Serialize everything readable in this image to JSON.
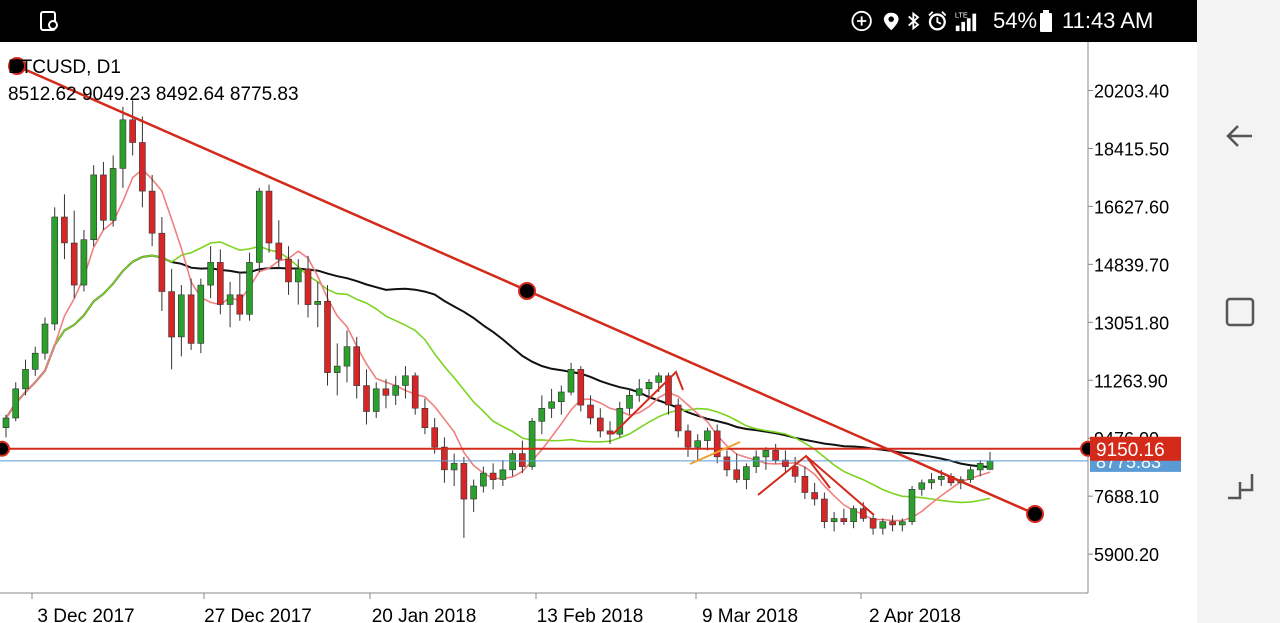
{
  "status_bar": {
    "battery": "54%",
    "time": "11:43 AM",
    "icons": [
      "screenshot-icon",
      "add-circle-icon",
      "location-icon",
      "bluetooth-icon",
      "alarm-icon",
      "lte-signal-icon",
      "battery-icon"
    ]
  },
  "nav": {
    "icons": [
      "back-icon",
      "home-icon",
      "recent-apps-icon"
    ]
  },
  "chart_data": {
    "type": "candlestick",
    "symbol_title": "BTCUSD, D1",
    "ohlc_header": "8512.62 9049.23 8492.64 8775.83",
    "y_ticks": [
      "20203.40",
      "18415.50",
      "16627.60",
      "14839.70",
      "13051.80",
      "11263.90",
      "9476.00",
      "7688.10",
      "5900.20"
    ],
    "x_ticks": [
      "3 Dec 2017",
      "27 Dec 2017",
      "20 Jan 2018",
      "13 Feb 2018",
      "9 Mar 2018",
      "2 Apr 2018"
    ],
    "price_label_line": "9150.16",
    "price_label_current": "8775.83",
    "ylim": [
      4700,
      21700
    ],
    "colors": {
      "bull": "#2ca02c",
      "bear": "#d62728",
      "wick": "#333333",
      "trendline": "#d42a1a",
      "hline": "#d42a1a",
      "current_line": "#5a9bd5",
      "ma_black": "#111111",
      "ma_green": "#7dd420",
      "ma_red": "#f08080"
    },
    "candles": [
      [
        9800,
        10200,
        9500,
        10100
      ],
      [
        10100,
        11200,
        10000,
        11000
      ],
      [
        11000,
        11900,
        10800,
        11600
      ],
      [
        11600,
        12300,
        11400,
        12100
      ],
      [
        12100,
        13200,
        11900,
        13000
      ],
      [
        13000,
        16600,
        12800,
        16300
      ],
      [
        16300,
        17000,
        15000,
        15500
      ],
      [
        15500,
        16500,
        13800,
        14200
      ],
      [
        14200,
        15900,
        14000,
        15600
      ],
      [
        15600,
        17900,
        15400,
        17600
      ],
      [
        17600,
        18000,
        15900,
        16200
      ],
      [
        16200,
        18200,
        16000,
        17800
      ],
      [
        17800,
        19700,
        17200,
        19300
      ],
      [
        19300,
        19900,
        18200,
        18600
      ],
      [
        18600,
        19400,
        16600,
        17100
      ],
      [
        17100,
        17600,
        15400,
        15800
      ],
      [
        15800,
        16300,
        13400,
        14000
      ],
      [
        14000,
        14700,
        11600,
        12600
      ],
      [
        12600,
        14200,
        12000,
        13900
      ],
      [
        13900,
        14400,
        12200,
        12400
      ],
      [
        12400,
        14400,
        12100,
        14200
      ],
      [
        14200,
        15400,
        13800,
        14900
      ],
      [
        14900,
        15300,
        13300,
        13600
      ],
      [
        13600,
        14300,
        12900,
        13900
      ],
      [
        13900,
        14600,
        13100,
        13300
      ],
      [
        13300,
        15200,
        13100,
        14900
      ],
      [
        14900,
        17200,
        14600,
        17100
      ],
      [
        17100,
        17300,
        15200,
        15500
      ],
      [
        15500,
        16200,
        14700,
        15000
      ],
      [
        15000,
        15400,
        13900,
        14300
      ],
      [
        14300,
        15000,
        13600,
        14700
      ],
      [
        14700,
        15100,
        13200,
        13600
      ],
      [
        13600,
        14300,
        12900,
        13700
      ],
      [
        13700,
        14200,
        11100,
        11500
      ],
      [
        11500,
        12400,
        10800,
        11700
      ],
      [
        11700,
        12800,
        11200,
        12300
      ],
      [
        12300,
        12600,
        10700,
        11100
      ],
      [
        11100,
        11600,
        9900,
        10300
      ],
      [
        10300,
        11200,
        10100,
        11000
      ],
      [
        11000,
        11300,
        10400,
        10800
      ],
      [
        10800,
        11400,
        10500,
        11100
      ],
      [
        11100,
        11700,
        10700,
        11400
      ],
      [
        11400,
        11500,
        10200,
        10400
      ],
      [
        10400,
        10700,
        9600,
        9800
      ],
      [
        9800,
        10100,
        9000,
        9200
      ],
      [
        9200,
        9500,
        8100,
        8500
      ],
      [
        8500,
        9000,
        8000,
        8700
      ],
      [
        8700,
        8900,
        6400,
        7600
      ],
      [
        7600,
        8200,
        7200,
        8000
      ],
      [
        8000,
        8600,
        7800,
        8400
      ],
      [
        8400,
        8700,
        7900,
        8200
      ],
      [
        8200,
        8800,
        8000,
        8500
      ],
      [
        8500,
        9100,
        8300,
        9000
      ],
      [
        9000,
        9400,
        8400,
        8600
      ],
      [
        8600,
        10100,
        8500,
        10000
      ],
      [
        10000,
        10800,
        9600,
        10400
      ],
      [
        10400,
        11000,
        10100,
        10600
      ],
      [
        10600,
        11100,
        10200,
        10900
      ],
      [
        10900,
        11800,
        10800,
        11600
      ],
      [
        11600,
        11700,
        10300,
        10500
      ],
      [
        10500,
        10800,
        9900,
        10100
      ],
      [
        10100,
        10400,
        9500,
        9700
      ],
      [
        9700,
        10000,
        9300,
        9600
      ],
      [
        9600,
        10600,
        9500,
        10400
      ],
      [
        10400,
        11000,
        10200,
        10800
      ],
      [
        10800,
        11300,
        10600,
        11000
      ],
      [
        11000,
        11300,
        10700,
        11200
      ],
      [
        11200,
        11500,
        10900,
        11400
      ],
      [
        11400,
        11500,
        10200,
        10500
      ],
      [
        10500,
        10700,
        9500,
        9700
      ],
      [
        9700,
        9900,
        8900,
        9200
      ],
      [
        9200,
        9600,
        8800,
        9400
      ],
      [
        9400,
        9800,
        9100,
        9700
      ],
      [
        9700,
        9900,
        8700,
        8900
      ],
      [
        8900,
        9100,
        8300,
        8500
      ],
      [
        8500,
        9000,
        8100,
        8200
      ],
      [
        8200,
        8700,
        7900,
        8600
      ],
      [
        8600,
        9100,
        8400,
        8900
      ],
      [
        8900,
        9200,
        8500,
        9100
      ],
      [
        9100,
        9300,
        8700,
        8800
      ],
      [
        8800,
        9100,
        8400,
        8600
      ],
      [
        8600,
        8900,
        8100,
        8300
      ],
      [
        8300,
        8600,
        7600,
        7800
      ],
      [
        7800,
        8100,
        7400,
        7600
      ],
      [
        7600,
        7800,
        6700,
        6900
      ],
      [
        6900,
        7200,
        6600,
        7000
      ],
      [
        7000,
        7300,
        6800,
        6900
      ],
      [
        6900,
        7400,
        6700,
        7300
      ],
      [
        7300,
        7500,
        6900,
        7000
      ],
      [
        7000,
        7100,
        6500,
        6700
      ],
      [
        6700,
        7000,
        6500,
        6900
      ],
      [
        6900,
        7100,
        6600,
        6800
      ],
      [
        6800,
        7000,
        6600,
        6900
      ],
      [
        6900,
        8000,
        6800,
        7900
      ],
      [
        7900,
        8200,
        7700,
        8100
      ],
      [
        8100,
        8400,
        7900,
        8200
      ],
      [
        8200,
        8500,
        8000,
        8300
      ],
      [
        8300,
        8400,
        8000,
        8100
      ],
      [
        8100,
        8300,
        7900,
        8200
      ],
      [
        8200,
        8600,
        8100,
        8500
      ],
      [
        8500,
        8800,
        8300,
        8700
      ],
      [
        8512.62,
        9049.23,
        8492.64,
        8775.83
      ]
    ]
  }
}
